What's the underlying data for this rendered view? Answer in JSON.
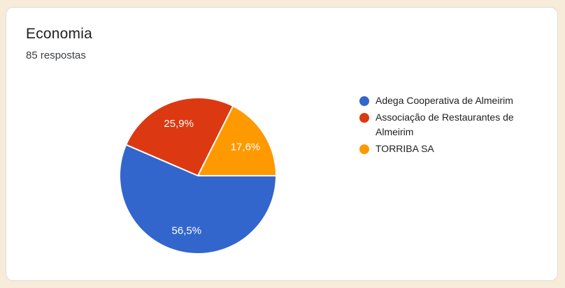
{
  "card": {
    "title": "Economia",
    "responses": "85 respostas"
  },
  "chart_data": {
    "type": "pie",
    "title": "Economia",
    "subtitle": "85 respostas",
    "categories": [
      "Adega Cooperativa de Almeirim",
      "Associação de Restaurantes de Almeirim",
      "TORRIBA SA"
    ],
    "values": [
      56.5,
      25.9,
      17.6
    ],
    "value_format": "percent",
    "slice_labels": [
      "56,5%",
      "25,9%",
      "17,6%"
    ],
    "colors": [
      "#3366CC",
      "#DC3912",
      "#FF9900"
    ],
    "start_angle_deg": 0,
    "direction": "clockwise",
    "legend_position": "right",
    "separator_color": "#FFFFFF",
    "label_color": "#FFFFFF"
  },
  "legend": {
    "items": [
      {
        "label": "Adega Cooperativa de Almeirim",
        "color": "#3366CC"
      },
      {
        "label": "Associação de Restaurantes de Almeirim",
        "color": "#DC3912"
      },
      {
        "label": "TORRIBA SA",
        "color": "#FF9900"
      }
    ]
  }
}
